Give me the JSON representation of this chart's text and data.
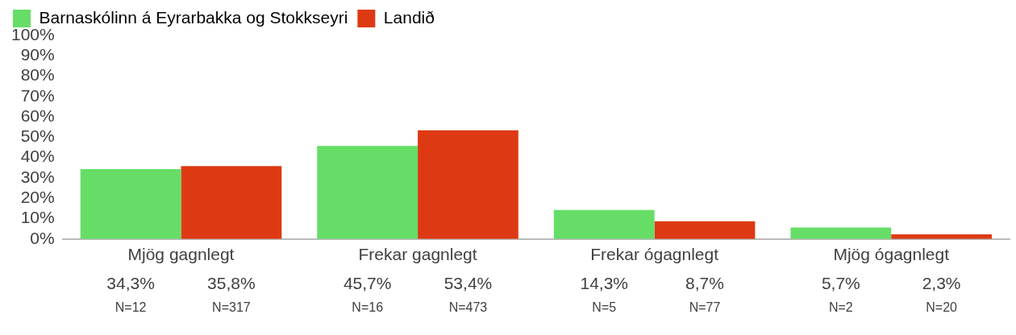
{
  "chart_data": {
    "type": "bar",
    "categories": [
      "Mjög gagnlegt",
      "Frekar gagnlegt",
      "Frekar ógagnlegt",
      "Mjög ógagnlegt"
    ],
    "series": [
      {
        "name": "Barnaskólinn á Eyrarbakka og Stokkseyri",
        "color": "#66dd66",
        "values": [
          34.3,
          45.7,
          14.3,
          5.7
        ],
        "value_labels": [
          "34,3%",
          "45,7%",
          "14,3%",
          "5,7%"
        ]
      },
      {
        "name": "Landið",
        "color": "#dd3a14",
        "values": [
          35.8,
          53.4,
          8.7,
          2.3
        ],
        "value_labels": [
          "35,8%",
          "53,4%",
          "8,7%",
          "2,3%"
        ]
      }
    ],
    "ylim": [
      0,
      100
    ],
    "yticks": [
      {
        "value": 0,
        "label": "0%"
      },
      {
        "value": 10,
        "label": "10%"
      },
      {
        "value": 20,
        "label": "20%"
      },
      {
        "value": 30,
        "label": "30%"
      },
      {
        "value": 40,
        "label": "40%"
      },
      {
        "value": 50,
        "label": "50%"
      },
      {
        "value": 60,
        "label": "60%"
      },
      {
        "value": 70,
        "label": "70%"
      },
      {
        "value": 80,
        "label": "80%"
      },
      {
        "value": 90,
        "label": "90%"
      },
      {
        "value": 100,
        "label": "100%"
      }
    ],
    "annotations": [
      "N=12",
      "N=317",
      "N=16",
      "N=473",
      "N=5",
      "N=77",
      "N=2",
      "N=20"
    ],
    "grid": false,
    "legend": "top left"
  }
}
